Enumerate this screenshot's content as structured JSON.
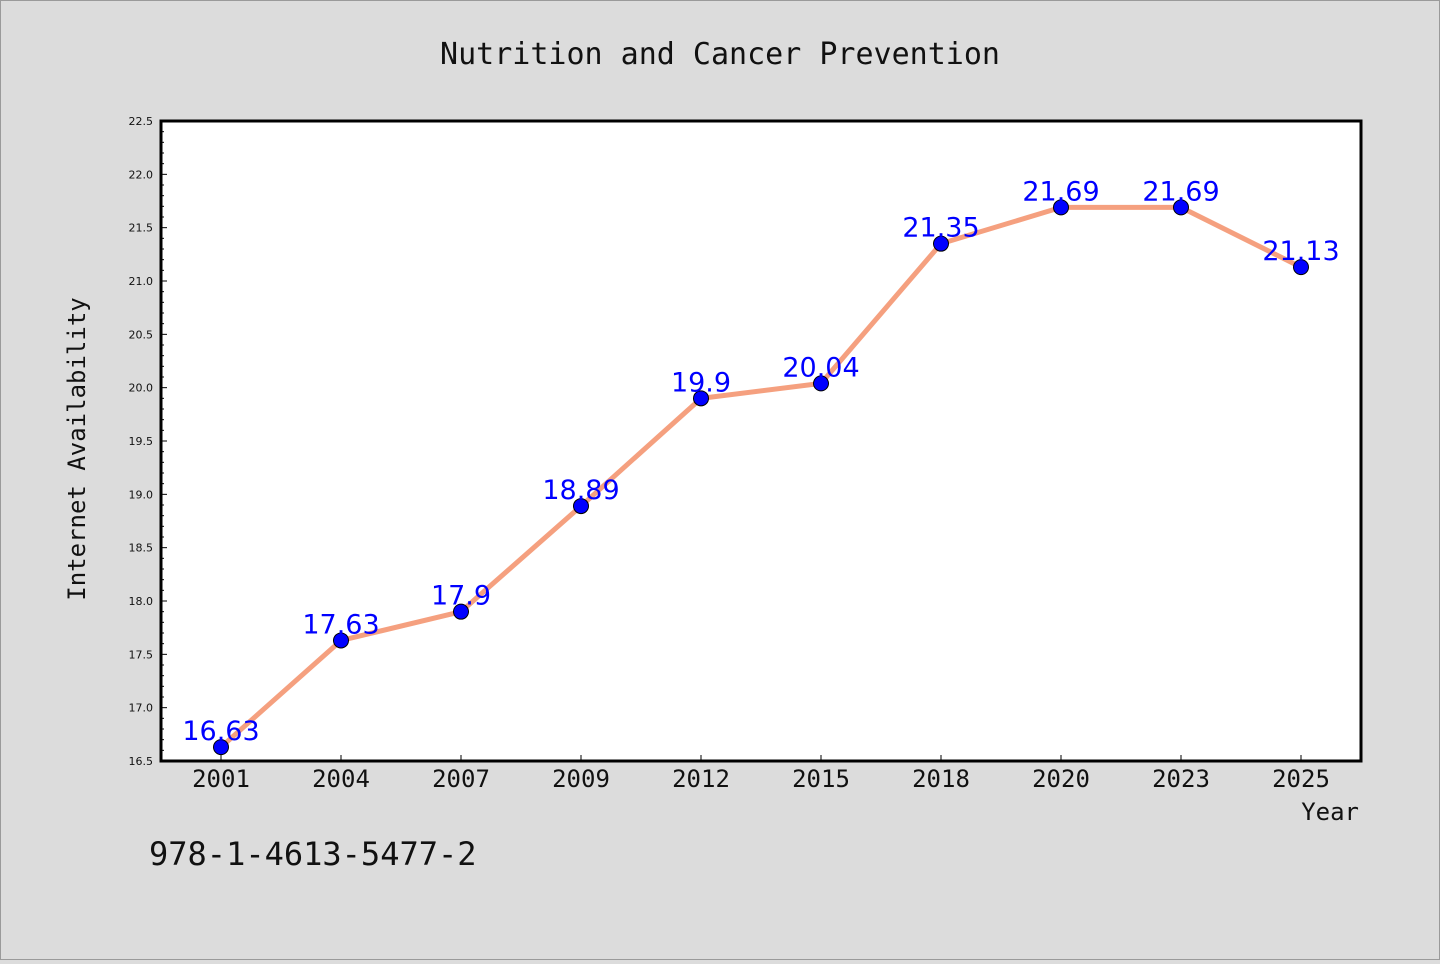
{
  "chart_data": {
    "type": "line",
    "title": "Nutrition and Cancer Prevention",
    "xlabel": "Year",
    "ylabel": "Internet Availability",
    "categories": [
      "2001",
      "2004",
      "2007",
      "2009",
      "2012",
      "2015",
      "2018",
      "2020",
      "2023",
      "2025"
    ],
    "values": [
      16.63,
      17.63,
      17.9,
      18.89,
      19.9,
      20.04,
      21.35,
      21.69,
      21.69,
      21.13
    ],
    "data_labels": [
      "16.63",
      "17.63",
      "17.9",
      "18.89",
      "19.9",
      "20.04",
      "21.35",
      "21.69",
      "21.69",
      "21.13"
    ],
    "ylim": [
      16.5,
      22.5
    ],
    "yticks": [
      "16.5",
      "17.0",
      "17.5",
      "18.0",
      "18.5",
      "19.0",
      "19.5",
      "20.0",
      "20.5",
      "21.0",
      "21.5",
      "22.0",
      "22.5"
    ],
    "grid": false,
    "legend": "none",
    "colors": {
      "line": "#f5a07f",
      "marker": "#0000ff",
      "data_label": "#0000ff",
      "plot_background": "#ffffff",
      "figure_background": "#dcdcdc"
    }
  },
  "annotation": {
    "text": "978-1-4613-5477-2"
  }
}
